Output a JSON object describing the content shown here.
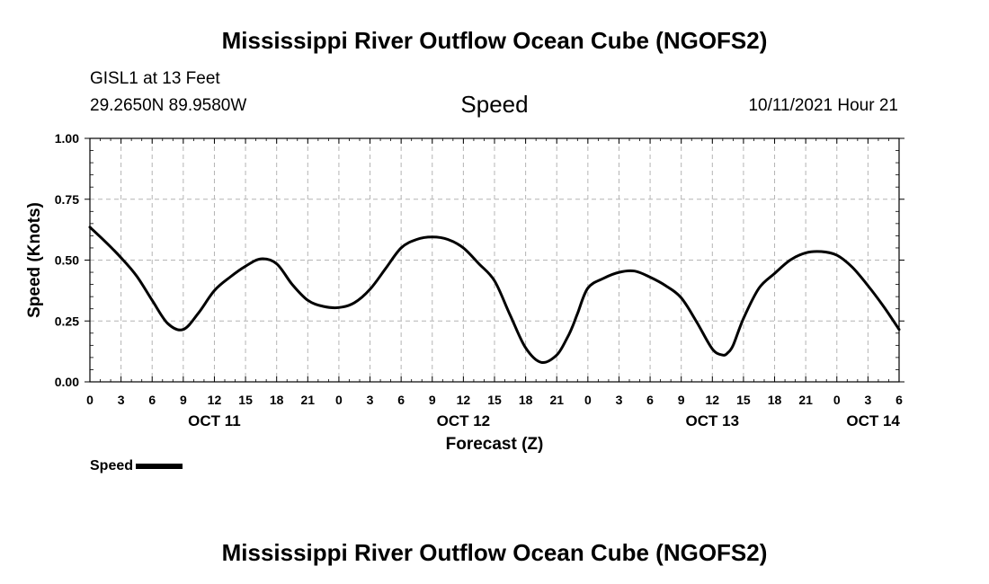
{
  "header": {
    "title": "Mississippi River Outflow Ocean Cube (NGOFS2)",
    "station_name": "GISL1 at 13 Feet",
    "station_coords": "29.2650N  89.9580W",
    "chart_heading": "Speed",
    "datetime": "10/11/2021 Hour 21"
  },
  "footer": {
    "title": "Mississippi River Outflow Ocean Cube (NGOFS2)"
  },
  "legend": {
    "label": "Speed"
  },
  "colors": {
    "line": "#000000",
    "grid": "#b4b4b4",
    "axis": "#000000"
  },
  "chart_data": {
    "type": "line",
    "title": "Speed",
    "xlabel": "Forecast (Z)",
    "ylabel": "Speed (Knots)",
    "xlim": [
      0,
      78
    ],
    "ylim": [
      0,
      1
    ],
    "grid": true,
    "legend": "bottom-left",
    "x_ticks": [
      0,
      3,
      6,
      9,
      12,
      15,
      18,
      21,
      24,
      27,
      30,
      33,
      36,
      39,
      42,
      45,
      48,
      51,
      54,
      57,
      60,
      63,
      66,
      69,
      72,
      75,
      78
    ],
    "x_tick_labels": [
      "0",
      "3",
      "6",
      "9",
      "12",
      "15",
      "18",
      "21",
      "0",
      "3",
      "6",
      "9",
      "12",
      "15",
      "18",
      "21",
      "0",
      "3",
      "6",
      "9",
      "12",
      "15",
      "18",
      "21",
      "0",
      "3",
      "6"
    ],
    "y_ticks": [
      0,
      0.25,
      0.5,
      0.75,
      1.0
    ],
    "y_tick_labels": [
      "0.00",
      "0.25",
      "0.50",
      "0.75",
      "1.00"
    ],
    "date_labels": [
      {
        "x": 12,
        "label": "OCT 11"
      },
      {
        "x": 36,
        "label": "OCT 12"
      },
      {
        "x": 60,
        "label": "OCT 13"
      },
      {
        "x": 75.5,
        "label": "OCT 14"
      }
    ],
    "series": [
      {
        "name": "Speed",
        "x": [
          0,
          1.5,
          3,
          4.5,
          6,
          7.5,
          9,
          10.5,
          12,
          13.5,
          15,
          16.5,
          18,
          19.5,
          21,
          22.5,
          24,
          25.5,
          27,
          28.5,
          30,
          31.5,
          33,
          34.5,
          36,
          37.5,
          39,
          40.5,
          42,
          43.5,
          45,
          46,
          46.5,
          47,
          48,
          49.5,
          51,
          52.5,
          54,
          55.5,
          57,
          58.5,
          60,
          61,
          61.5,
          62,
          63,
          64.5,
          66,
          67.5,
          69,
          70.5,
          72,
          73.5,
          75,
          76.5,
          78
        ],
        "values": [
          0.635,
          0.575,
          0.51,
          0.435,
          0.335,
          0.24,
          0.215,
          0.285,
          0.375,
          0.43,
          0.475,
          0.505,
          0.485,
          0.4,
          0.335,
          0.31,
          0.305,
          0.325,
          0.38,
          0.465,
          0.55,
          0.585,
          0.595,
          0.585,
          0.55,
          0.485,
          0.415,
          0.275,
          0.14,
          0.08,
          0.11,
          0.18,
          0.225,
          0.28,
          0.385,
          0.425,
          0.45,
          0.455,
          0.43,
          0.395,
          0.345,
          0.245,
          0.135,
          0.11,
          0.12,
          0.15,
          0.26,
          0.385,
          0.445,
          0.5,
          0.53,
          0.535,
          0.52,
          0.47,
          0.395,
          0.31,
          0.215
        ]
      }
    ]
  }
}
